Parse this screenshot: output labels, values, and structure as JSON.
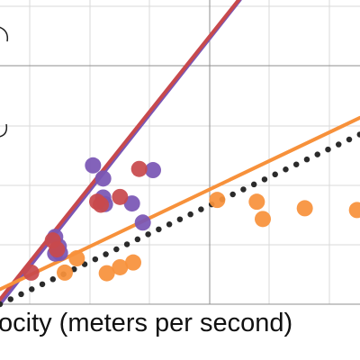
{
  "chart_data": {
    "type": "scatter",
    "xlabel": "ocity (meters per second)",
    "ylabel": "",
    "xlim": [
      0,
      6
    ],
    "ylim": [
      0,
      5
    ],
    "grid": true,
    "colors": {
      "purple": "#7a56b5",
      "red": "#c8494c",
      "orange": "#f7913b",
      "dotted": "#2b2b2b"
    },
    "series": [
      {
        "color": "purple",
        "points": [
          {
            "x": 1.0,
            "y": 0.86
          },
          {
            "x": 0.92,
            "y": 0.85
          },
          {
            "x": 0.98,
            "y": 0.97
          },
          {
            "x": 0.92,
            "y": 1.13
          },
          {
            "x": 1.55,
            "y": 2.33
          },
          {
            "x": 1.72,
            "y": 2.11
          },
          {
            "x": 1.72,
            "y": 1.79
          },
          {
            "x": 1.75,
            "y": 1.68
          },
          {
            "x": 2.2,
            "y": 1.69
          },
          {
            "x": 2.38,
            "y": 1.37
          },
          {
            "x": 2.55,
            "y": 2.25
          }
        ]
      },
      {
        "color": "red",
        "points": [
          {
            "x": 0.52,
            "y": 0.53
          },
          {
            "x": 0.88,
            "y": 1.07
          },
          {
            "x": 0.95,
            "y": 0.92
          },
          {
            "x": 1.62,
            "y": 1.72
          },
          {
            "x": 1.68,
            "y": 1.67
          },
          {
            "x": 2.0,
            "y": 1.8
          },
          {
            "x": 2.32,
            "y": 2.27
          }
        ]
      },
      {
        "color": "orange",
        "points": [
          {
            "x": 1.08,
            "y": 0.53
          },
          {
            "x": 1.28,
            "y": 0.77
          },
          {
            "x": 1.78,
            "y": 0.52
          },
          {
            "x": 2.0,
            "y": 0.62
          },
          {
            "x": 2.22,
            "y": 0.7
          },
          {
            "x": 3.62,
            "y": 1.75
          },
          {
            "x": 4.28,
            "y": 1.72
          },
          {
            "x": 4.38,
            "y": 1.43
          },
          {
            "x": 5.08,
            "y": 1.61
          },
          {
            "x": 5.95,
            "y": 1.58
          }
        ]
      }
    ],
    "lines": [
      {
        "color": "purple",
        "style": "solid",
        "x": [
          0,
          4.0
        ],
        "y": [
          0.0,
          5.11
        ]
      },
      {
        "color": "red",
        "style": "solid",
        "x": [
          0,
          3.98
        ],
        "y": [
          0.08,
          5.11
        ]
      },
      {
        "color": "orange",
        "style": "solid",
        "x": [
          0,
          6.0
        ],
        "y": [
          0.25,
          3.13
        ]
      },
      {
        "color": "dotted",
        "style": "dotted",
        "x": [
          0,
          6.0
        ],
        "y": [
          0.0,
          2.85
        ]
      }
    ]
  }
}
